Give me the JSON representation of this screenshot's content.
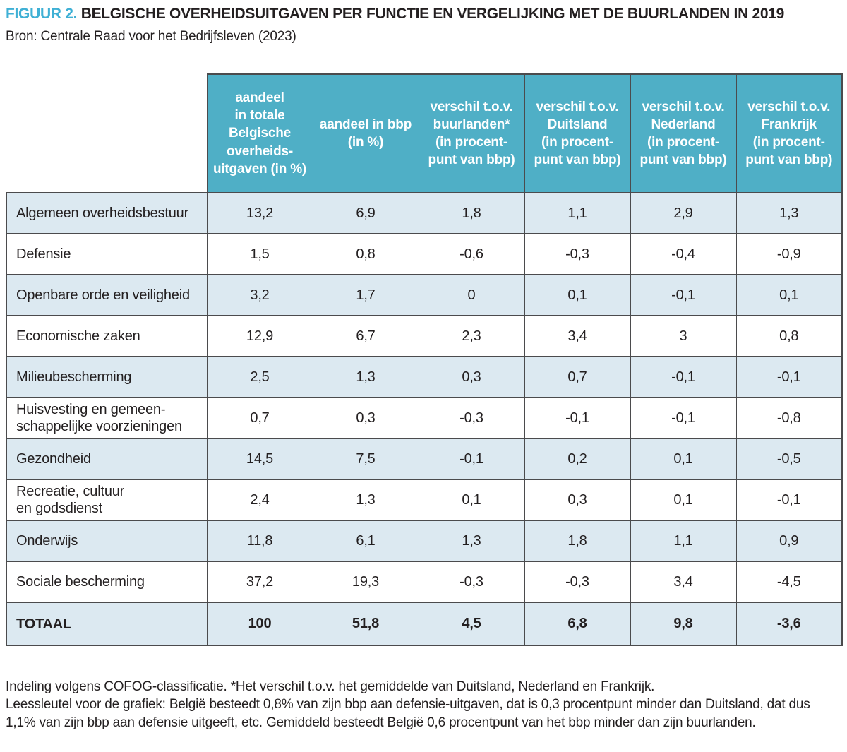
{
  "header": {
    "figure_label": "FIGUUR 2.",
    "title": "BELGISCHE OVERHEIDSUITGAVEN PER FUNCTIE EN VERGELIJKING MET DE BUURLANDEN IN 2019",
    "source": "Bron: Centrale Raad voor het Bedrijfsleven (2023)"
  },
  "colors": {
    "accent_blue": "#3fb0d5",
    "header_fill": "#4fafc6",
    "row_alt_fill": "#dce9f1",
    "border": "#4b4b4d",
    "text": "#231f20"
  },
  "chart_data": {
    "type": "table",
    "title": "FIGUUR 2. BELGISCHE OVERHEIDSUITGAVEN PER FUNCTIE EN VERGELIJKING MET DE BUURLANDEN IN 2019",
    "source": "Bron: Centrale Raad voor het Bedrijfsleven (2023)",
    "columns": [
      "aandeel\nin totale\nBelgische\noverheids-\nuitgaven (in %)",
      "aandeel in bbp\n(in %)",
      "verschil t.o.v.\nbuurlanden*\n(in procent-\npunt van bbp)",
      "verschil t.o.v.\nDuitsland\n(in procent-\npunt van bbp)",
      "verschil t.o.v.\nNederland\n(in procent-\npunt van bbp)",
      "verschil t.o.v.\nFrankrijk\n(in procent-\npunt van bbp)"
    ],
    "rows": [
      {
        "label": "Algemeen overheidsbestuur",
        "values": [
          "13,2",
          "6,9",
          "1,8",
          "1,1",
          "2,9",
          "1,3"
        ]
      },
      {
        "label": "Defensie",
        "values": [
          "1,5",
          "0,8",
          "-0,6",
          "-0,3",
          "-0,4",
          "-0,9"
        ]
      },
      {
        "label": "Openbare orde en veiligheid",
        "values": [
          "3,2",
          "1,7",
          "0",
          "0,1",
          "-0,1",
          "0,1"
        ]
      },
      {
        "label": "Economische zaken",
        "values": [
          "12,9",
          "6,7",
          "2,3",
          "3,4",
          "3",
          "0,8"
        ]
      },
      {
        "label": "Milieubescherming",
        "values": [
          "2,5",
          "1,3",
          "0,3",
          "0,7",
          "-0,1",
          "-0,1"
        ]
      },
      {
        "label": "Huisvesting en gemeen-\nschappelijke voorzieningen",
        "values": [
          "0,7",
          "0,3",
          "-0,3",
          "-0,1",
          "-0,1",
          "-0,8"
        ]
      },
      {
        "label": "Gezondheid",
        "values": [
          "14,5",
          "7,5",
          "-0,1",
          "0,2",
          "0,1",
          "-0,5"
        ]
      },
      {
        "label": "Recreatie, cultuur\nen godsdienst",
        "values": [
          "2,4",
          "1,3",
          "0,1",
          "0,3",
          "0,1",
          "-0,1"
        ]
      },
      {
        "label": "Onderwijs",
        "values": [
          "11,8",
          "6,1",
          "1,3",
          "1,8",
          "1,1",
          "0,9"
        ]
      },
      {
        "label": "Sociale bescherming",
        "values": [
          "37,2",
          "19,3",
          "-0,3",
          "-0,3",
          "3,4",
          "-4,5"
        ]
      }
    ],
    "total_row": {
      "label": "TOTAAL",
      "values": [
        "100",
        "51,8",
        "4,5",
        "6,8",
        "9,8",
        "-3,6"
      ]
    }
  },
  "footnotes": {
    "line1": "Indeling volgens COFOG-classificatie. *Het verschil t.o.v. het gemiddelde van Duitsland, Nederland en Frankrijk.",
    "line2": "Leessleutel voor de grafiek: België besteedt 0,8% van zijn bbp aan defensie-uitgaven, dat is 0,3 procentpunt minder dan Duitsland, dat dus 1,1% van zijn bbp aan defensie uitgeeft, etc. Gemiddeld besteedt België 0,6 procentpunt van het bbp minder dan zijn buurlanden."
  }
}
